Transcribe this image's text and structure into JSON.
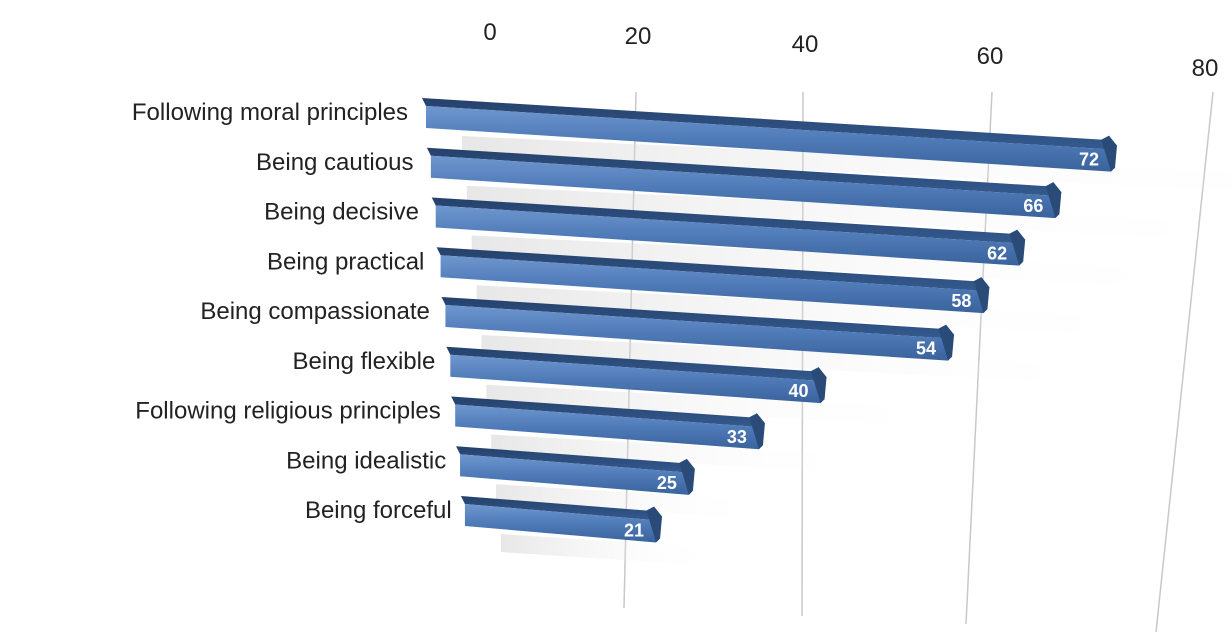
{
  "chart_data": {
    "type": "bar",
    "orientation": "horizontal",
    "title": "",
    "xlabel": "",
    "ylabel": "",
    "xlim": [
      0,
      80
    ],
    "x_ticks": [
      0,
      20,
      40,
      60,
      80
    ],
    "grid": true,
    "legend": "none",
    "categories": [
      "Following moral principles",
      "Being cautious",
      "Being decisive",
      "Being practical",
      "Being compassionate",
      "Being flexible",
      "Following religious principles",
      "Being idealistic",
      "Being forceful"
    ],
    "values": [
      72,
      66,
      62,
      58,
      54,
      40,
      33,
      25,
      21
    ],
    "colors": {
      "bar_face": "#4f7bb8",
      "bar_top": "#2c4d7c",
      "bar_bottom": "#1f3a60",
      "grid": "#c8c8c8",
      "shadow": "#d9d9d9"
    }
  }
}
